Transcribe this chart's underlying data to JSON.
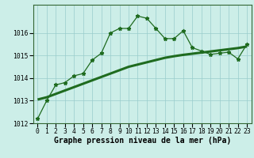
{
  "xlabel": "Graphe pression niveau de la mer (hPa)",
  "x": [
    0,
    1,
    2,
    3,
    4,
    5,
    6,
    7,
    8,
    9,
    10,
    11,
    12,
    13,
    14,
    15,
    16,
    17,
    18,
    19,
    20,
    21,
    22,
    23
  ],
  "y_main": [
    1012.2,
    1013.0,
    1013.7,
    1013.8,
    1014.1,
    1014.2,
    1014.8,
    1015.1,
    1016.0,
    1016.2,
    1016.2,
    1016.75,
    1016.65,
    1016.2,
    1015.75,
    1015.75,
    1016.1,
    1015.35,
    1015.2,
    1015.05,
    1015.1,
    1015.15,
    1014.85,
    1015.5
  ],
  "y_trend": [
    1013.05,
    1013.15,
    1013.3,
    1013.45,
    1013.6,
    1013.75,
    1013.9,
    1014.05,
    1014.2,
    1014.35,
    1014.5,
    1014.6,
    1014.7,
    1014.8,
    1014.9,
    1014.97,
    1015.03,
    1015.08,
    1015.13,
    1015.18,
    1015.23,
    1015.28,
    1015.33,
    1015.4
  ],
  "ylim": [
    1012.0,
    1017.25
  ],
  "yticks": [
    1012,
    1013,
    1014,
    1015,
    1016
  ],
  "xticks": [
    0,
    1,
    2,
    3,
    4,
    5,
    6,
    7,
    8,
    9,
    10,
    11,
    12,
    13,
    14,
    15,
    16,
    17,
    18,
    19,
    20,
    21,
    22,
    23
  ],
  "line_color": "#1f6b1f",
  "trend_color": "#1f6b1f",
  "bg_color": "#cceee8",
  "grid_color": "#99cccc",
  "marker": "*",
  "marker_size": 3.5,
  "xlabel_fontsize": 7,
  "tick_fontsize": 5.8
}
